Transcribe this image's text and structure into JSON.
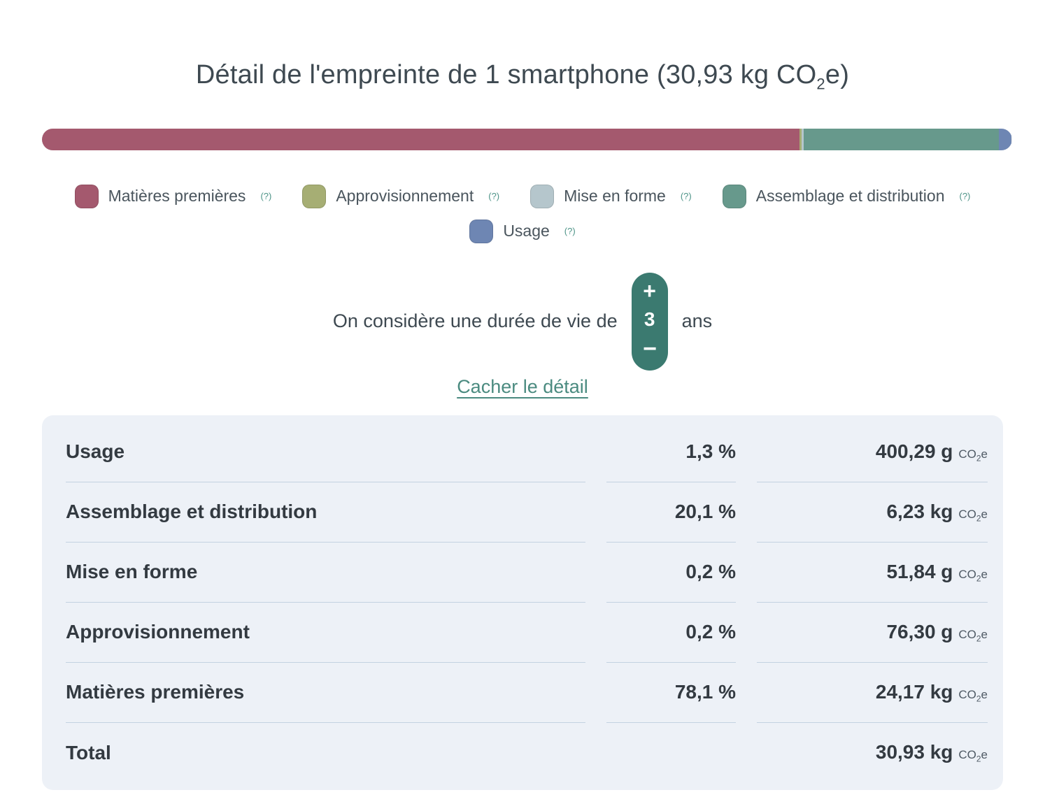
{
  "header": {
    "title_prefix": "Détail de l'empreinte de 1 smartphone (30,93 kg CO",
    "title_sub": "2",
    "title_suffix": "e)"
  },
  "chart_data": {
    "type": "bar",
    "variant": "horizontal-stacked",
    "title": "Détail de l'empreinte de 1 smartphone (30,93 kg CO2e)",
    "unit": "%",
    "xlim": [
      0,
      100
    ],
    "total": "30,93 kg CO2e",
    "segments": [
      {
        "name": "Matières premières",
        "percent": 78.1,
        "value": "24,17 kg CO2e",
        "color": "#a4596e"
      },
      {
        "name": "Approvisionnement",
        "percent": 0.2,
        "value": "76,30 g CO2e",
        "color": "#a6ae74"
      },
      {
        "name": "Mise en forme",
        "percent": 0.2,
        "value": "51,84 g CO2e",
        "color": "#b5c6cc"
      },
      {
        "name": "Assemblage et distribution",
        "percent": 20.1,
        "value": "6,23 kg CO2e",
        "color": "#67998c"
      },
      {
        "name": "Usage",
        "percent": 1.3,
        "value": "400,29 g CO2e",
        "color": "#6e86b3"
      }
    ]
  },
  "legend": {
    "items": [
      {
        "label": "Matières premières",
        "help": "(?)",
        "color": "#a4596e"
      },
      {
        "label": "Approvisionnement",
        "help": "(?)",
        "color": "#a6ae74"
      },
      {
        "label": "Mise en forme",
        "help": "(?)",
        "color": "#b5c6cc"
      },
      {
        "label": "Assemblage et distribution",
        "help": "(?)",
        "color": "#67998c"
      },
      {
        "label": "Usage",
        "help": "(?)",
        "color": "#6e86b3"
      }
    ]
  },
  "lifetime": {
    "text_before": "On considère une durée de vie de",
    "value": "3",
    "unit": "ans",
    "increment": "+",
    "decrement": "−"
  },
  "toggle_link": "Cacher le détail",
  "table": {
    "rows": [
      {
        "label": "Usage",
        "percent": "1,3 %",
        "value": "400,29 g"
      },
      {
        "label": "Assemblage et distribution",
        "percent": "20,1 %",
        "value": "6,23 kg"
      },
      {
        "label": "Mise en forme",
        "percent": "0,2 %",
        "value": "51,84 g"
      },
      {
        "label": "Approvisionnement",
        "percent": "0,2 %",
        "value": "76,30 g"
      },
      {
        "label": "Matières premières",
        "percent": "78,1 %",
        "value": "24,17 kg"
      }
    ],
    "total": {
      "label": "Total",
      "value": "30,93 kg"
    },
    "unit": {
      "co": "CO",
      "sub": "2",
      "e": "e"
    }
  },
  "colors": {
    "stepper_background": "#3b7a70",
    "link": "#4b8b80",
    "help": "#4e9488",
    "panel_background": "#edf1f7",
    "divider": "#c3d2e1",
    "title_text": "#3e4951"
  }
}
